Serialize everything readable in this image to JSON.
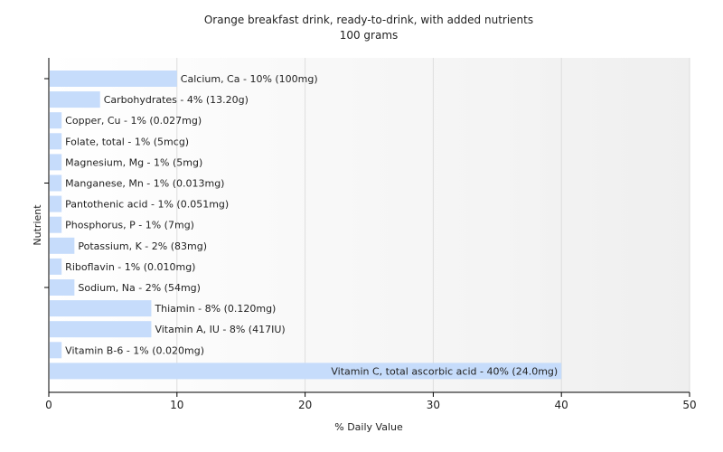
{
  "chart_data": {
    "type": "bar",
    "orientation": "horizontal",
    "title": "Orange breakfast drink, ready-to-drink, with added nutrients",
    "subtitle": "100 grams",
    "xlabel": "% Daily Value",
    "ylabel": "Nutrient",
    "xlim": [
      0,
      50
    ],
    "xticks": [
      0,
      10,
      20,
      30,
      40,
      50
    ],
    "grid": true,
    "bar_color": "#c6dcfb",
    "categories": [
      "Calcium, Ca",
      "Carbohydrates",
      "Copper, Cu",
      "Folate, total",
      "Magnesium, Mg",
      "Manganese, Mn",
      "Pantothenic acid",
      "Phosphorus, P",
      "Potassium, K",
      "Riboflavin",
      "Sodium, Na",
      "Thiamin",
      "Vitamin A, IU",
      "Vitamin B-6",
      "Vitamin C, total ascorbic acid"
    ],
    "values": [
      10,
      4,
      1,
      1,
      1,
      1,
      1,
      1,
      2,
      1,
      2,
      8,
      8,
      1,
      40
    ],
    "labels": [
      "Calcium, Ca - 10% (100mg)",
      "Carbohydrates - 4% (13.20g)",
      "Copper, Cu - 1% (0.027mg)",
      "Folate, total - 1% (5mcg)",
      "Magnesium, Mg - 1% (5mg)",
      "Manganese, Mn - 1% (0.013mg)",
      "Pantothenic acid - 1% (0.051mg)",
      "Phosphorus, P - 1% (7mg)",
      "Potassium, K - 2% (83mg)",
      "Riboflavin - 1% (0.010mg)",
      "Sodium, Na - 2% (54mg)",
      "Thiamin - 8% (0.120mg)",
      "Vitamin A, IU - 8% (417IU)",
      "Vitamin B-6 - 1% (0.020mg)",
      "Vitamin C, total ascorbic acid - 40% (24.0mg)"
    ]
  }
}
